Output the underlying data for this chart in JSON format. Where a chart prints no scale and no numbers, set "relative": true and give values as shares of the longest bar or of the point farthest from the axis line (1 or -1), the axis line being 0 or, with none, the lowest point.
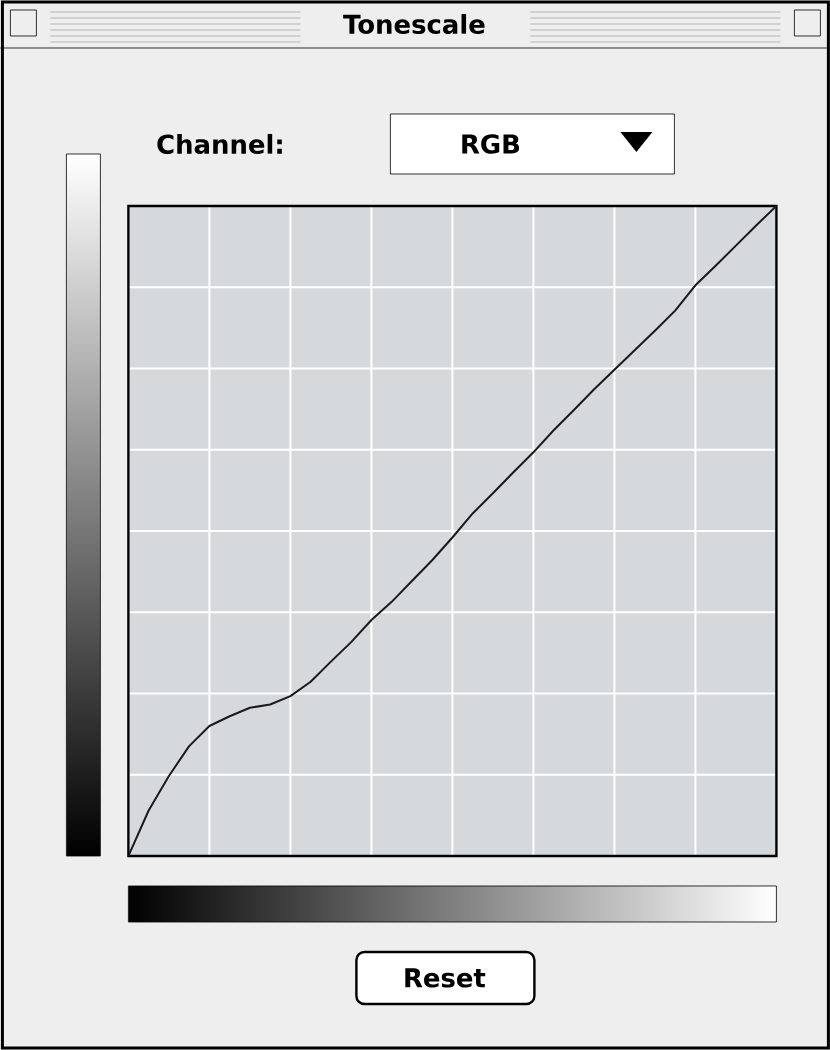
{
  "chart_data": {
    "type": "line",
    "title": "Tonescale",
    "annotations": [
      "Channel:",
      "RGB",
      "Reset"
    ],
    "relative": true,
    "grid": true,
    "color": "#1a1a1a",
    "categories": [
      null,
      null,
      null,
      null,
      null,
      null,
      null,
      null,
      null,
      null,
      null,
      null,
      null,
      null,
      null,
      null,
      null,
      null,
      null,
      null,
      null,
      null,
      null,
      null,
      null,
      null,
      null,
      null,
      null,
      null,
      null,
      null,
      null
    ],
    "values": [
      0,
      0.07,
      0.123,
      0.169,
      0.2,
      0.215,
      0.228,
      0.233,
      0.246,
      0.268,
      0.299,
      0.329,
      0.363,
      0.391,
      0.423,
      0.455,
      0.49,
      0.527,
      0.558,
      0.59,
      0.621,
      0.655,
      0.686,
      0.718,
      0.748,
      0.778,
      0.808,
      0.839,
      0.878,
      0.908,
      0.939,
      0.97,
      1
    ]
  }
}
